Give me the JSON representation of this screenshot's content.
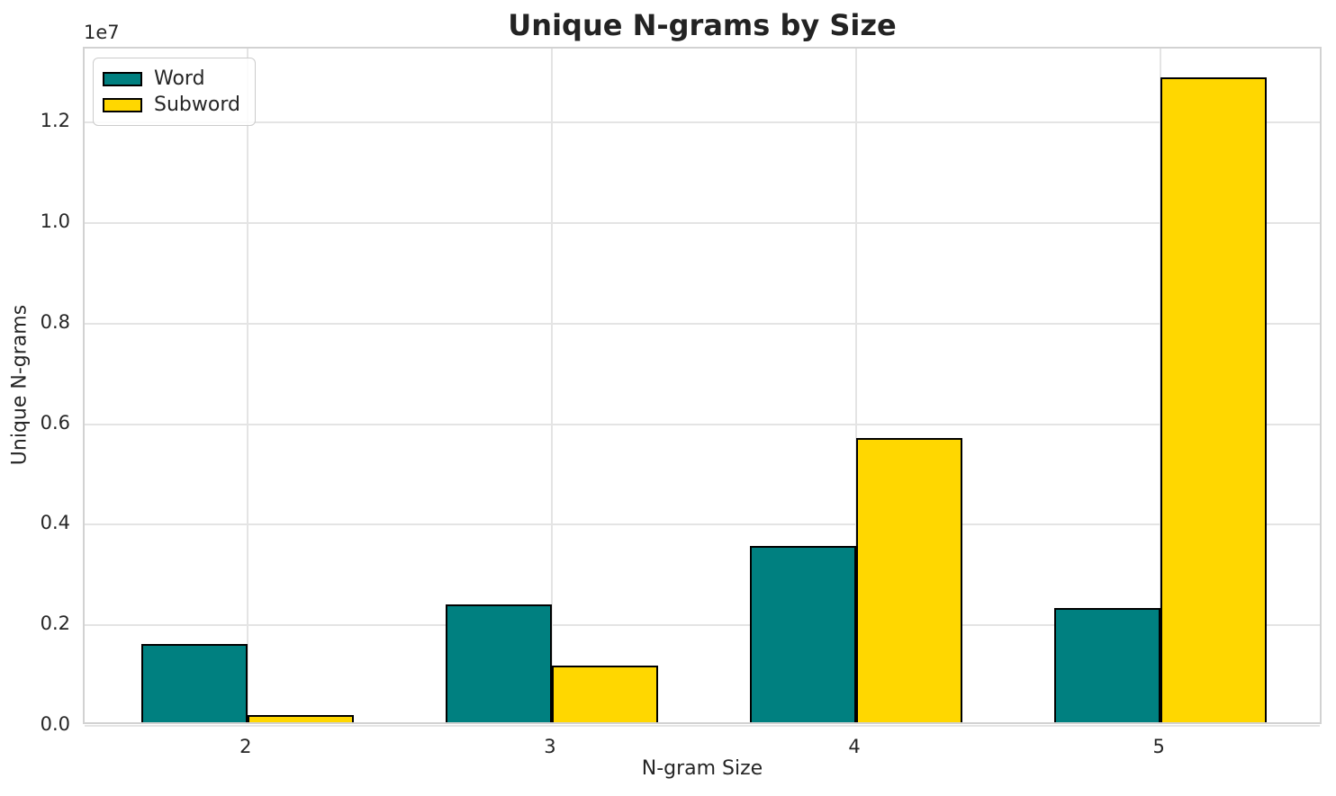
{
  "chart_data": {
    "type": "bar",
    "title": "Unique N-grams by Size",
    "xlabel": "N-gram Size",
    "ylabel": "Unique N-grams",
    "offset_text": "1e7",
    "categories": [
      "2",
      "3",
      "4",
      "5"
    ],
    "category_positions": [
      2,
      3,
      4,
      5
    ],
    "series": [
      {
        "name": "Word",
        "color": "#008080",
        "values": [
          1550000,
          2340000,
          3500000,
          2280000
        ]
      },
      {
        "name": "Subword",
        "color": "#FFD700",
        "values": [
          135000,
          1120000,
          5650000,
          12830000
        ]
      }
    ],
    "bar_width": 0.35,
    "bar_edge_color": "#000000",
    "xlim": [
      1.465,
      5.535
    ],
    "ylim": [
      0,
      13470000
    ],
    "yticks": [
      0,
      2000000,
      4000000,
      6000000,
      8000000,
      10000000,
      12000000
    ],
    "ytick_labels": [
      "0.0",
      "0.2",
      "0.4",
      "0.6",
      "0.8",
      "1.0",
      "1.2"
    ],
    "grid": true,
    "legend_position": "upper left",
    "colors": {
      "text": "#262626",
      "grid": "#e4e4e4",
      "spine": "#d2d2d2",
      "background": "#ffffff"
    }
  }
}
